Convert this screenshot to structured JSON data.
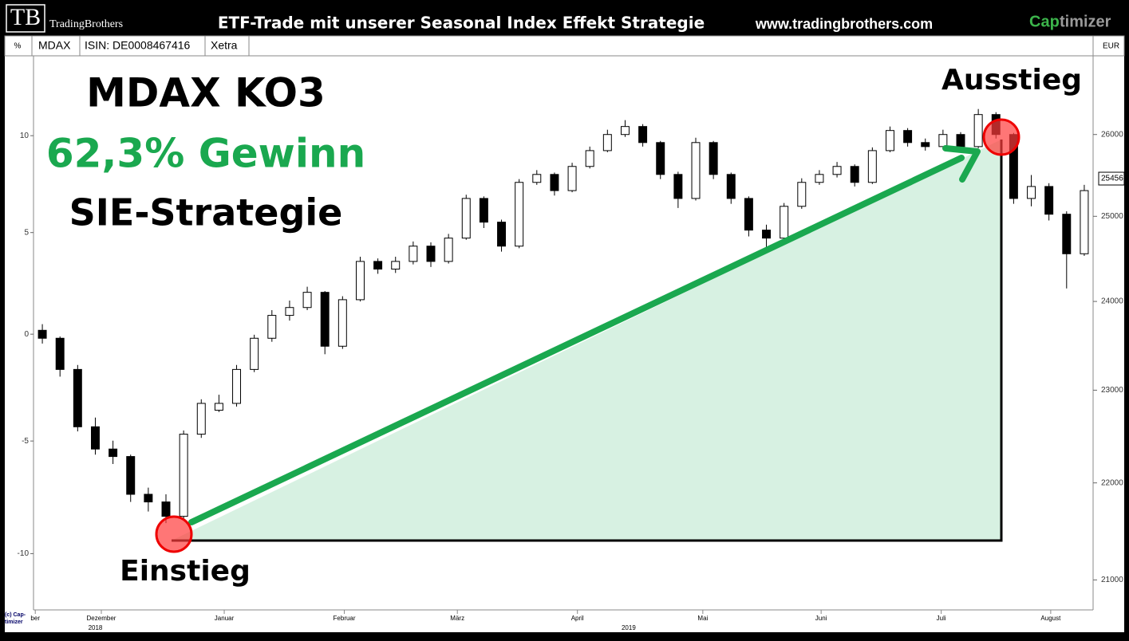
{
  "header": {
    "logo": "TB",
    "brand": "TradingBrothers",
    "headline": "ETF-Trade mit unserer Seasonal Index Effekt Strategie",
    "url": "www.tradingbrothers.com",
    "product_a": "Cap",
    "product_b": "timizer"
  },
  "toolbar": {
    "unit_left": "%",
    "symbol": "MDAX",
    "isin": "ISIN: DE0008467416",
    "exchange": "Xetra",
    "unit_right": "EUR",
    "copyright": "(c) Cap-timizer"
  },
  "chart_data": {
    "type": "candlestick",
    "annotations": {
      "title": "MDAX KO3",
      "gain": "62,3% Gewinn",
      "strategy": "SIE-Strategie",
      "exit": "Ausstieg",
      "entry": "Einstieg"
    },
    "open": [
      23670,
      23580,
      23230,
      22600,
      22360,
      22280,
      21880,
      21800,
      21650,
      22520,
      22780,
      22855,
      23230,
      23580,
      23840,
      23930,
      24105,
      23490,
      24020,
      24465,
      24375,
      24465,
      24645,
      24465,
      24740,
      25215,
      24930,
      24645,
      25410,
      25507,
      25310,
      25605,
      25800,
      26000,
      26100,
      25900,
      25507,
      25215,
      25900,
      25507,
      25215,
      24835,
      24740,
      25120,
      25410,
      25507,
      25605,
      25410,
      25800,
      26050,
      25900,
      25850,
      26000,
      25850,
      26250,
      26000,
      25215,
      25360,
      25025,
      24555
    ],
    "high": [
      23740,
      23600,
      23280,
      22700,
      22450,
      22300,
      21950,
      21880,
      22560,
      22900,
      22950,
      23280,
      23620,
      23900,
      24010,
      24170,
      24120,
      24060,
      24520,
      24500,
      24520,
      24700,
      24690,
      24790,
      25260,
      25240,
      24960,
      25450,
      25560,
      25530,
      25650,
      25850,
      26060,
      26180,
      26130,
      25920,
      25540,
      25960,
      25920,
      25530,
      25240,
      24900,
      25160,
      25460,
      25560,
      25660,
      25630,
      25840,
      26100,
      26080,
      25950,
      26060,
      26030,
      26320,
      26280,
      26020,
      25500,
      25400,
      25060,
      25380
    ],
    "low": [
      23520,
      23150,
      22550,
      22300,
      22200,
      21800,
      21700,
      21580,
      21620,
      22480,
      22760,
      22820,
      23200,
      23540,
      23780,
      23900,
      23400,
      23460,
      24000,
      24320,
      24330,
      24430,
      24400,
      24440,
      24720,
      24860,
      24580,
      24620,
      25380,
      25250,
      25290,
      25580,
      25780,
      25970,
      25850,
      25450,
      25100,
      25190,
      25450,
      25150,
      24760,
      24600,
      24700,
      25090,
      25380,
      25470,
      25360,
      25390,
      25780,
      25850,
      25800,
      25820,
      25790,
      25830,
      25950,
      25150,
      25120,
      24950,
      24150,
      24530
    ],
    "close": [
      23580,
      23230,
      22600,
      22360,
      22280,
      21880,
      21800,
      21650,
      22520,
      22855,
      22855,
      23230,
      23580,
      23840,
      23930,
      24105,
      23490,
      24020,
      24465,
      24375,
      24465,
      24645,
      24465,
      24740,
      25215,
      24930,
      24645,
      25410,
      25507,
      25310,
      25605,
      25800,
      26000,
      26100,
      25900,
      25507,
      25215,
      25900,
      25507,
      25215,
      24835,
      24740,
      25120,
      25410,
      25507,
      25605,
      25410,
      25800,
      26050,
      25900,
      25850,
      26000,
      25850,
      26250,
      26000,
      25215,
      25360,
      25025,
      24555,
      25310
    ],
    "up_color": "#ffffff",
    "down_color": "#000000",
    "ylim": [
      -12.4,
      14.3
    ],
    "yticks": [
      10,
      5,
      0,
      -5,
      -10
    ],
    "y2lim": [
      20700,
      27000
    ],
    "y2ticks": [
      26000,
      25000,
      24000,
      23000,
      22000,
      21000
    ],
    "log_scale": true,
    "last_price": 25456,
    "xlim": [
      0,
      60
    ],
    "xticks": [
      {
        "value": 0.1,
        "label": "ber"
      },
      {
        "value": 3.84,
        "label": "Dezember"
      },
      {
        "value": 10.8,
        "label": "Januar"
      },
      {
        "value": 17.6,
        "label": "Februar"
      },
      {
        "value": 24.0,
        "label": "März"
      },
      {
        "value": 30.8,
        "label": "April"
      },
      {
        "value": 37.9,
        "label": "Mai"
      },
      {
        "value": 44.6,
        "label": "Juni"
      },
      {
        "value": 51.4,
        "label": "Juli"
      },
      {
        "value": 57.6,
        "label": "August"
      }
    ],
    "year_ticks": [
      {
        "value": 3.5,
        "label": "2018"
      },
      {
        "value": 33.7,
        "label": "2019"
      }
    ]
  }
}
